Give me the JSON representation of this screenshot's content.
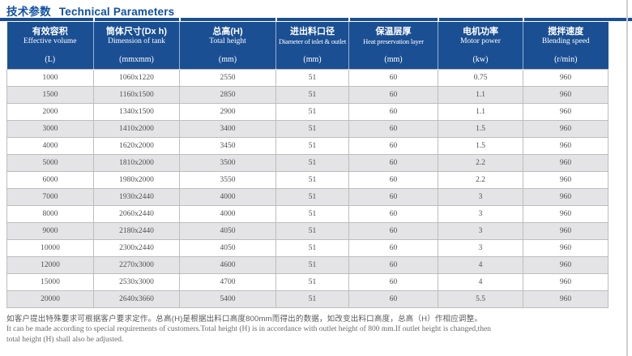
{
  "page": {
    "title_zh": "技术参数",
    "title_en": "Technical Parameters"
  },
  "table": {
    "columns": [
      {
        "zh": "有效容积",
        "en": "Effective volume",
        "unit": "(L)"
      },
      {
        "zh": "筒体尺寸(Dx h)",
        "en": "Dimension of tank",
        "unit": "(mmxmm)"
      },
      {
        "zh": "总高(H)",
        "en": "Total height",
        "unit": "(mm)"
      },
      {
        "zh": "进出料口径",
        "en": "Diameter of inlet & outlet",
        "unit": "(mm)"
      },
      {
        "zh": "保温层厚",
        "en": "Heat preservation layer",
        "unit": "(mm)"
      },
      {
        "zh": "电机功率",
        "en": "Motor power",
        "unit": "(kw)"
      },
      {
        "zh": "搅拌速度",
        "en": "Blending speed",
        "unit": "(r/min)"
      }
    ],
    "rows": [
      [
        "1000",
        "1060x1220",
        "2550",
        "51",
        "60",
        "0.75",
        "960"
      ],
      [
        "1500",
        "1160x1500",
        "2850",
        "51",
        "60",
        "1.1",
        "960"
      ],
      [
        "2000",
        "1340x1500",
        "2900",
        "51",
        "60",
        "1.1",
        "960"
      ],
      [
        "3000",
        "1410x2000",
        "3400",
        "51",
        "60",
        "1.5",
        "960"
      ],
      [
        "4000",
        "1620x2000",
        "3450",
        "51",
        "60",
        "1.5",
        "960"
      ],
      [
        "5000",
        "1810x2000",
        "3500",
        "51",
        "60",
        "2.2",
        "960"
      ],
      [
        "6000",
        "1980x2000",
        "3550",
        "51",
        "60",
        "2.2",
        "960"
      ],
      [
        "7000",
        "1930x2440",
        "4000",
        "51",
        "60",
        "3",
        "960"
      ],
      [
        "8000",
        "2060x2440",
        "4000",
        "51",
        "60",
        "3",
        "960"
      ],
      [
        "9000",
        "2180x2440",
        "4050",
        "51",
        "60",
        "3",
        "960"
      ],
      [
        "10000",
        "2300x2440",
        "4050",
        "51",
        "60",
        "3",
        "960"
      ],
      [
        "12000",
        "2270x3000",
        "4600",
        "51",
        "60",
        "4",
        "960"
      ],
      [
        "15000",
        "2530x3000",
        "4700",
        "51",
        "60",
        "4",
        "960"
      ],
      [
        "20000",
        "2640x3660",
        "5400",
        "51",
        "60",
        "5.5",
        "960"
      ]
    ]
  },
  "footnote": {
    "zh": "如客户提出特殊要求可根据客户要求定作。总高(H)是根据出料口高度800mm而得出的数据，如改变出料口高度，总高（H）作相应调整。",
    "en_line1": "It can be made according to special requirements of customers.Total height (H) is in accordance with outlet height of 800 mm.If outlet height is changed,then",
    "en_line2": "total height (H) shall also be adjusted."
  },
  "colors": {
    "header_bg": "#1b4f93",
    "title_text": "#1150a6",
    "row_alt_bg": "#e4e4e6",
    "grid_line": "#bdbdbd",
    "cell_text": "#4f4f4f"
  }
}
